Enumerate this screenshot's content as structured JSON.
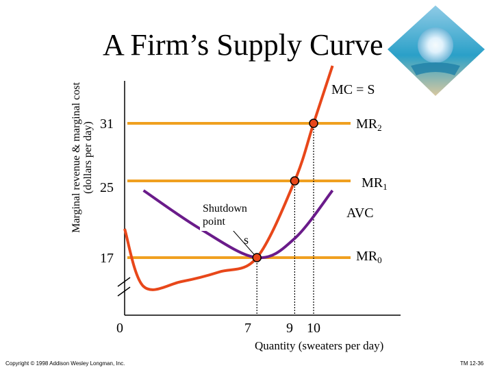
{
  "title": "A Firm’s Supply Curve",
  "chart_data": {
    "type": "line",
    "xlabel": "Quantity (sweaters per day)",
    "ylabel_line1": "Marginal revenue & marginal cost",
    "ylabel_line2": "(dollars per day)",
    "x_ticks": [
      "0",
      "7",
      "9",
      "10"
    ],
    "y_ticks": [
      "31",
      "25",
      "17"
    ],
    "series": [
      {
        "name": "MC = S",
        "color": "#e8471a",
        "points": [
          [
            0,
            20
          ],
          [
            1,
            14
          ],
          [
            3,
            14.5
          ],
          [
            5,
            15.5
          ],
          [
            7,
            17
          ],
          [
            9,
            25
          ],
          [
            10,
            31
          ],
          [
            11,
            37
          ]
        ]
      },
      {
        "name": "AVC",
        "color": "#6a1b8a",
        "points": [
          [
            1,
            24
          ],
          [
            4,
            20
          ],
          [
            7,
            17
          ],
          [
            9,
            19
          ],
          [
            11,
            24
          ]
        ]
      },
      {
        "name": "MR",
        "sub": "2",
        "color": "#f0a020",
        "y": 31
      },
      {
        "name": "MR",
        "sub": "1",
        "color": "#f0a020",
        "y": 25
      },
      {
        "name": "MR",
        "sub": "0",
        "color": "#f0a020",
        "y": 17
      }
    ],
    "points": [
      {
        "x": 7,
        "y": 17,
        "label": "s"
      },
      {
        "x": 9,
        "y": 25
      },
      {
        "x": 10,
        "y": 31
      }
    ],
    "annotation": "Shutdown point"
  },
  "footer": {
    "copyright": "Copyright © 1998 Addison Wesley Longman, Inc.",
    "slide_number": "TM 12-36"
  },
  "colors": {
    "mc": "#e8471a",
    "avc": "#6a1b8a",
    "mr": "#f0a020",
    "dot": "#e8471a"
  }
}
